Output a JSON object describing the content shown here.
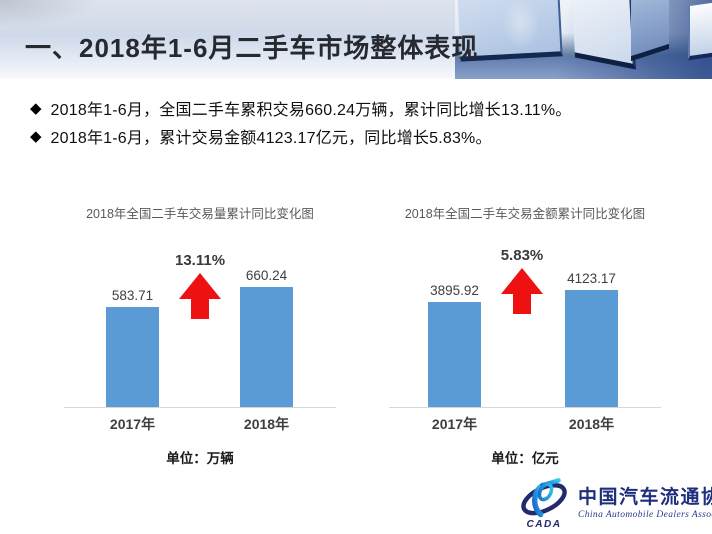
{
  "slide": {
    "header": {
      "title": "一、2018年1-6月二手车市场整体表现"
    },
    "bullets": [
      "2018年1-6月，全国二手车累积交易660.24万辆，累计同比增长13.11%。",
      "2018年1-6月，累计交易金额4123.17亿元，同比增长5.83%。"
    ]
  },
  "chart_data": [
    {
      "type": "bar",
      "title": "2018年全国二手车交易量累计同比变化图",
      "categories": [
        "2017年",
        "2018年"
      ],
      "values": [
        583.71,
        660.24
      ],
      "growth_label": "13.11%",
      "unit_label": "单位：万辆",
      "ylim": [
        200,
        700
      ],
      "y_axis_visible": false,
      "grid": false,
      "bar_color": "#5B9BD5",
      "arrow_color": "#EE1111"
    },
    {
      "type": "bar",
      "title": "2018年全国二手车交易金额累计同比变化图",
      "categories": [
        "2017年",
        "2018年"
      ],
      "values": [
        3895.92,
        4123.17
      ],
      "growth_label": "5.83%",
      "unit_label": "单位：亿元",
      "ylim": [
        2000,
        4500
      ],
      "y_axis_visible": false,
      "grid": false,
      "bar_color": "#5B9BD5",
      "arrow_color": "#EE1111"
    }
  ],
  "footer": {
    "logo": {
      "acronym": "CADA",
      "name_cn": "中国汽车流通协会",
      "name_en": "China Automobile Dealers Association"
    }
  },
  "colors": {
    "bar_blue": "#5B9BD5",
    "arrow_red": "#EE1111",
    "logo_navy": "#1e2f7b",
    "title_text": "#26292f",
    "chart_title_gray": "#595959",
    "header_band_blue": "#cfd9e9"
  }
}
